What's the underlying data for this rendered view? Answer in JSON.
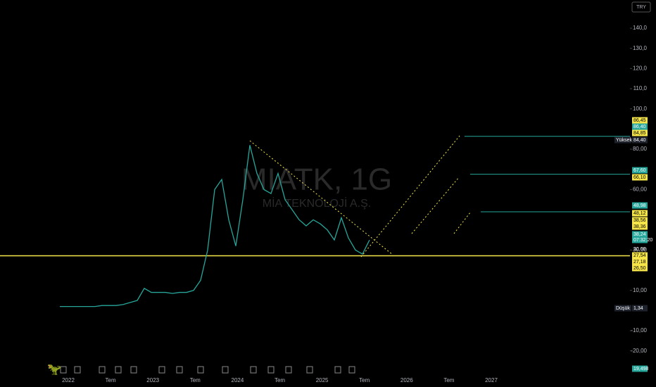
{
  "chart_data": {
    "type": "line",
    "watermark": {
      "symbol": "MIATK, 1G",
      "name": "MİA TEKNOLOJİ A.Ş."
    },
    "currency": "TRY",
    "color": "#26a69a",
    "values": [
      2,
      2,
      2,
      2,
      2,
      2,
      2.5,
      2.5,
      2.5,
      3,
      4,
      5,
      11,
      9,
      9,
      9,
      8.5,
      9,
      9,
      10,
      15,
      30,
      60,
      65,
      45,
      32,
      55,
      82,
      68,
      60,
      58,
      68,
      55,
      50,
      45,
      42,
      45,
      43,
      40,
      35,
      46,
      36,
      30,
      28,
      35
    ],
    "ylim": [
      -25,
      147
    ],
    "yticks": [
      {
        "value": 140,
        "label": "140,0"
      },
      {
        "value": 130,
        "label": "130,0"
      },
      {
        "value": 120,
        "label": "120,0"
      },
      {
        "value": 110,
        "label": "110,0"
      },
      {
        "value": 100,
        "label": "100,0"
      },
      {
        "value": 80,
        "label": "80,00"
      },
      {
        "value": 60,
        "label": "60,00"
      },
      {
        "value": 30,
        "label": "30,00"
      },
      {
        "value": 10,
        "label": "10,00"
      },
      {
        "value": -10,
        "label": "-10,00"
      },
      {
        "value": -20,
        "label": "-20,00"
      }
    ],
    "time_labels": [
      "2022",
      "Tem",
      "2023",
      "Tem",
      "2024",
      "Tem",
      "2025",
      "Tem",
      "2026",
      "Tem",
      "2027"
    ],
    "support_line": 27.18,
    "target_lines": [
      86.4,
      67.6,
      48.98
    ],
    "tags": {
      "t1": "86,45",
      "t2": "86,40",
      "t3": "84,85",
      "high_label": "Yüksek",
      "high": "84,40",
      "t5": "67,60",
      "t6": "66,10",
      "t7": "48,98",
      "t8": "48,12",
      "t9": "38,56",
      "t10": "38,36",
      "last": "38,24",
      "timer": "07:32:20",
      "t12": "30,00",
      "t13": "27,54",
      "t14": "27,18",
      "t15": "26,50",
      "low_label": "Düşük",
      "low": "1,34",
      "volume": "19,498"
    }
  }
}
